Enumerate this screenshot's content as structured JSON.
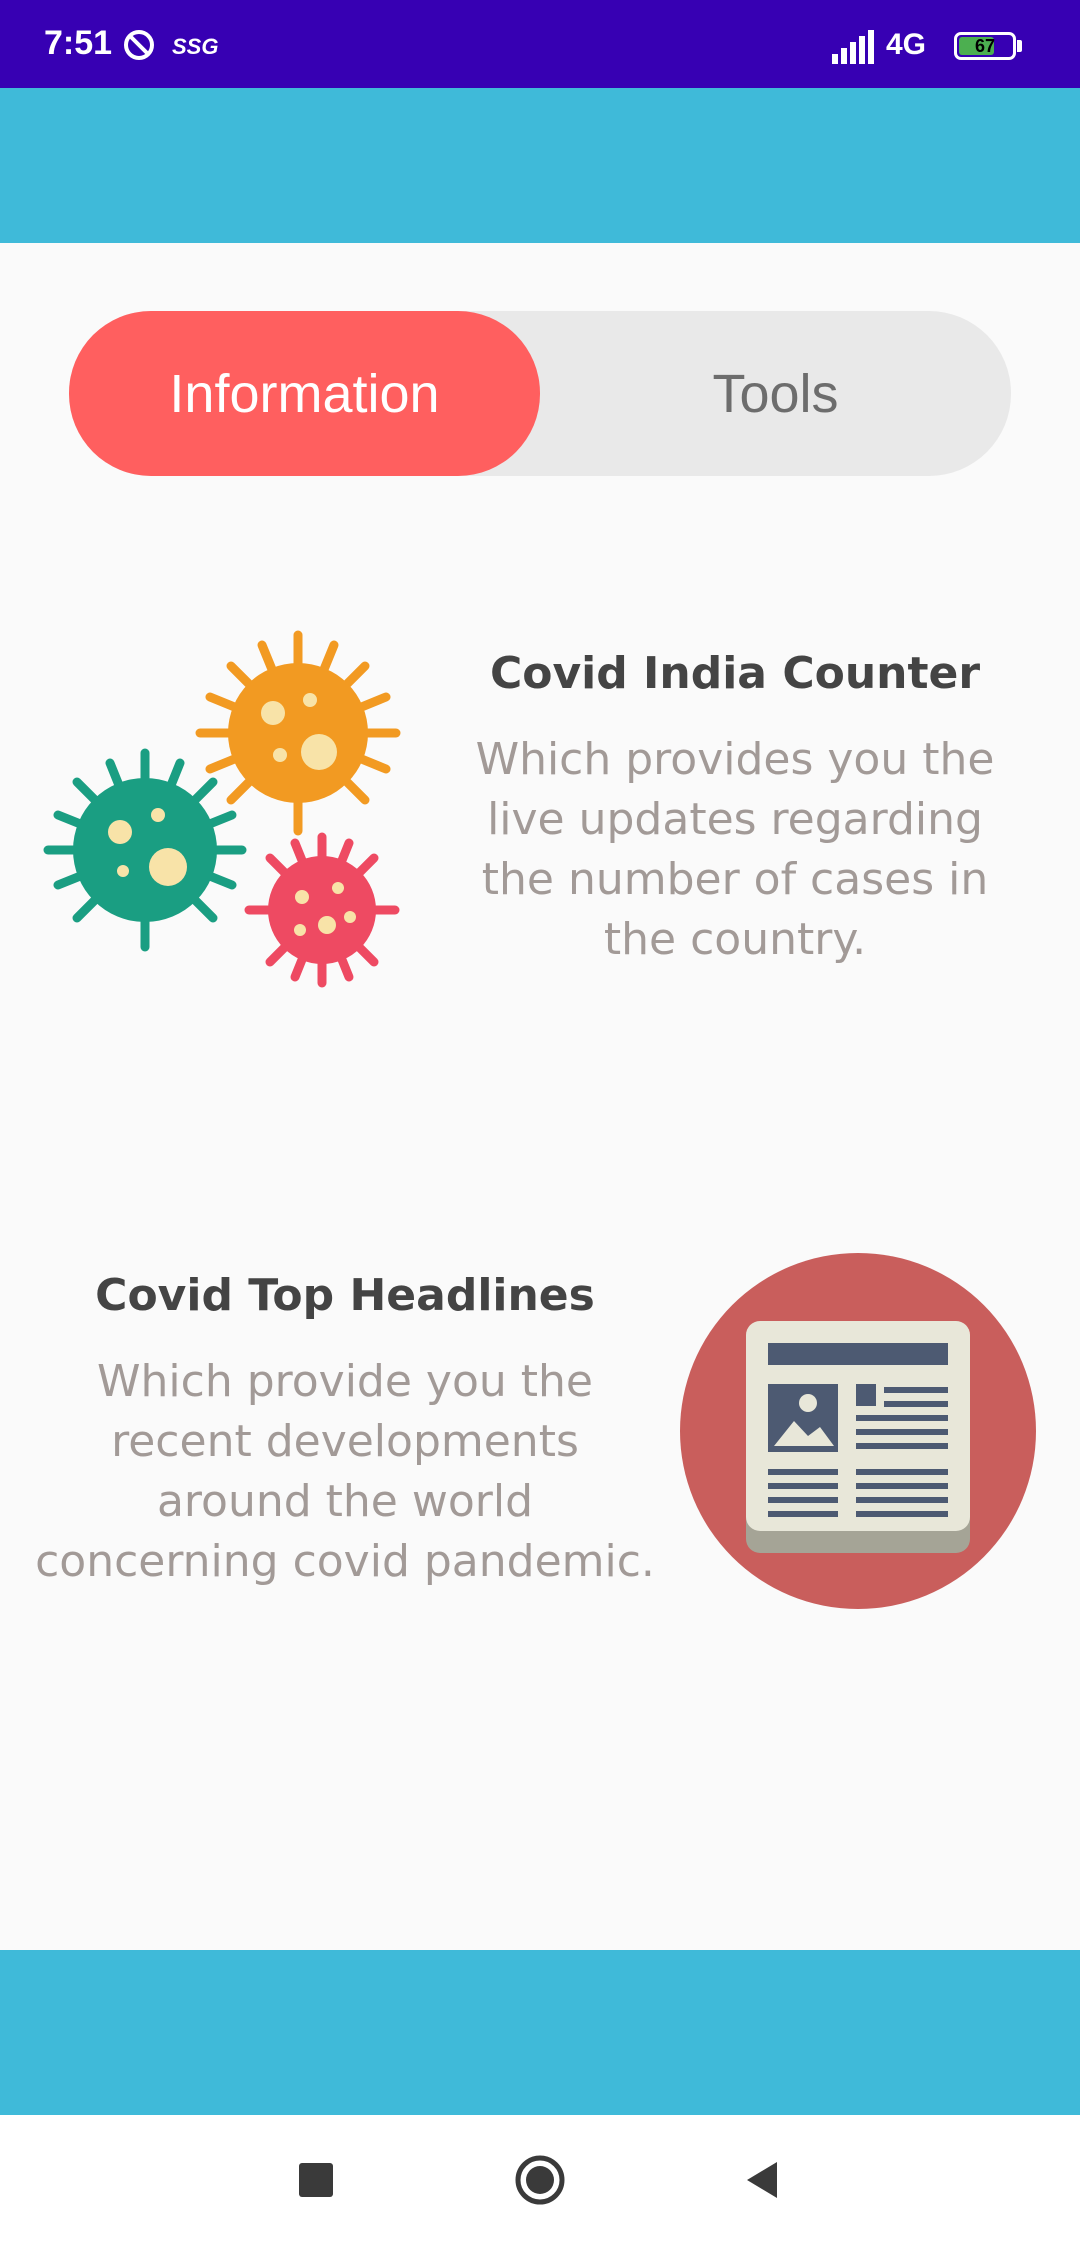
{
  "status_bar": {
    "time": "7:51",
    "carrier": "SSG",
    "network": "4G",
    "battery": "67",
    "battery_level": 0.67
  },
  "tabs": [
    {
      "label": "Information",
      "selected": true
    },
    {
      "label": "Tools",
      "selected": false
    }
  ],
  "cards": [
    {
      "title": "Covid India Counter",
      "description": "Which provides you the live updates regarding the number of cases in the country.",
      "icon": "virus-icon"
    },
    {
      "title": "Covid Top Headlines",
      "description": "Which provide you the recent developments around the world concerning covid pandemic.",
      "icon": "newspaper-icon"
    }
  ],
  "colors": {
    "status_bar": "#3700b3",
    "app_bar": "#3fbad9",
    "tab_selected": "#ff5f5f",
    "tab_track": "#e9e9e9",
    "title_text": "#444444",
    "description_text": "#a29a97"
  },
  "nav_icons": [
    "recents-square-icon",
    "home-circle-icon",
    "back-triangle-icon"
  ]
}
